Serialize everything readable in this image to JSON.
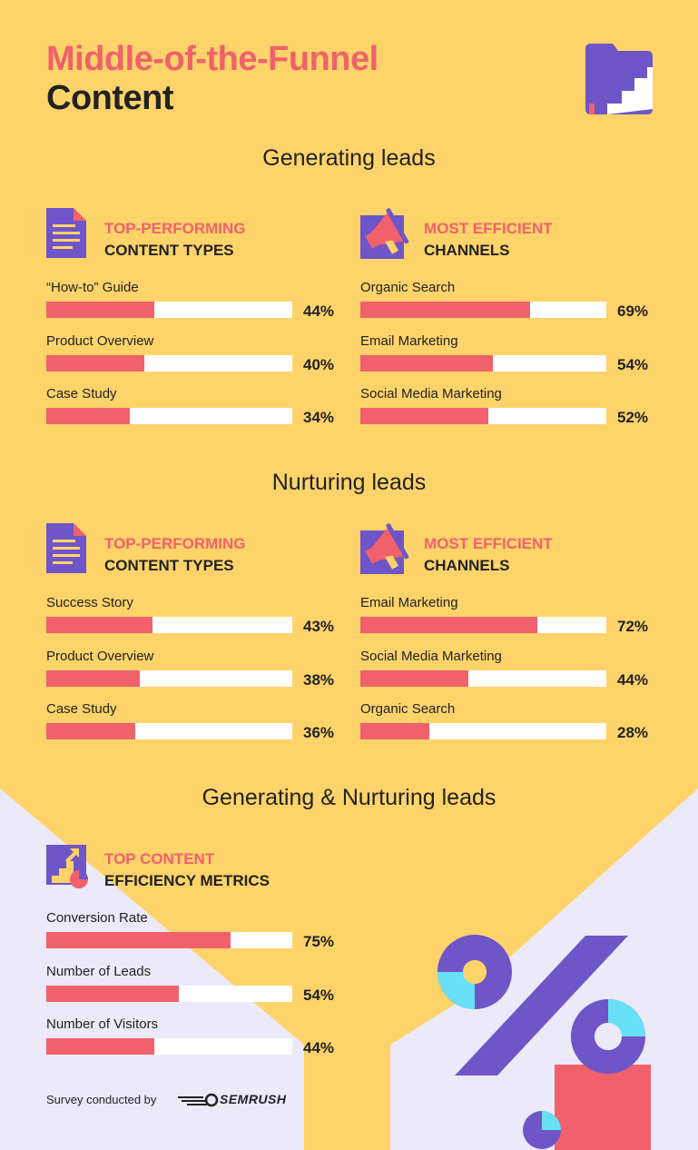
{
  "header": {
    "title_line1": "Middle-of-the-Funnel",
    "title_line2": "Content"
  },
  "colors": {
    "background": "#FED36A",
    "accent": "#F0616B",
    "purple": "#6E55C8",
    "cyan": "#67E0F5",
    "lavender": "#ECE9F8"
  },
  "icons": [
    "folder-stairs-icon",
    "document-icon",
    "megaphone-icon",
    "growth-chart-icon",
    "donut-chart-icon",
    "percent-sign-icon"
  ],
  "chart_data": [
    {
      "type": "bar",
      "section": "Generating leads",
      "heading_line1": "TOP-PERFORMING",
      "heading_line2": "CONTENT TYPES",
      "categories": [
        "“How-to” Guide",
        "Product Overview",
        "Case Study"
      ],
      "values": [
        44,
        40,
        34
      ],
      "value_labels": [
        "44%",
        "40%",
        "34%"
      ],
      "ylim": [
        0,
        100
      ]
    },
    {
      "type": "bar",
      "section": "Generating leads",
      "heading_line1": "MOST EFFICIENT",
      "heading_line2": "CHANNELS",
      "categories": [
        "Organic Search",
        "Email Marketing",
        "Social Media Marketing"
      ],
      "values": [
        69,
        54,
        52
      ],
      "value_labels": [
        "69%",
        "54%",
        "52%"
      ],
      "ylim": [
        0,
        100
      ]
    },
    {
      "type": "bar",
      "section": "Nurturing leads",
      "heading_line1": "TOP-PERFORMING",
      "heading_line2": "CONTENT TYPES",
      "categories": [
        "Success Story",
        "Product Overview",
        "Case Study"
      ],
      "values": [
        43,
        38,
        36
      ],
      "value_labels": [
        "43%",
        "38%",
        "36%"
      ],
      "ylim": [
        0,
        100
      ]
    },
    {
      "type": "bar",
      "section": "Nurturing leads",
      "heading_line1": "MOST EFFICIENT",
      "heading_line2": "CHANNELS",
      "categories": [
        "Email Marketing",
        "Social Media Marketing",
        "Organic Search"
      ],
      "values": [
        72,
        44,
        28
      ],
      "value_labels": [
        "72%",
        "44%",
        "28%"
      ],
      "ylim": [
        0,
        100
      ]
    },
    {
      "type": "bar",
      "section": "Generating & Nurturing leads",
      "heading_line1": "TOP CONTENT",
      "heading_line2": "EFFICIENCY METRICS",
      "categories": [
        "Conversion Rate",
        "Number of Leads",
        "Number of Visitors"
      ],
      "values": [
        75,
        54,
        44
      ],
      "value_labels": [
        "75%",
        "54%",
        "44%"
      ],
      "ylim": [
        0,
        100
      ]
    }
  ],
  "footer": {
    "survey_label": "Survey conducted by",
    "brand": "SEMRUSH"
  }
}
